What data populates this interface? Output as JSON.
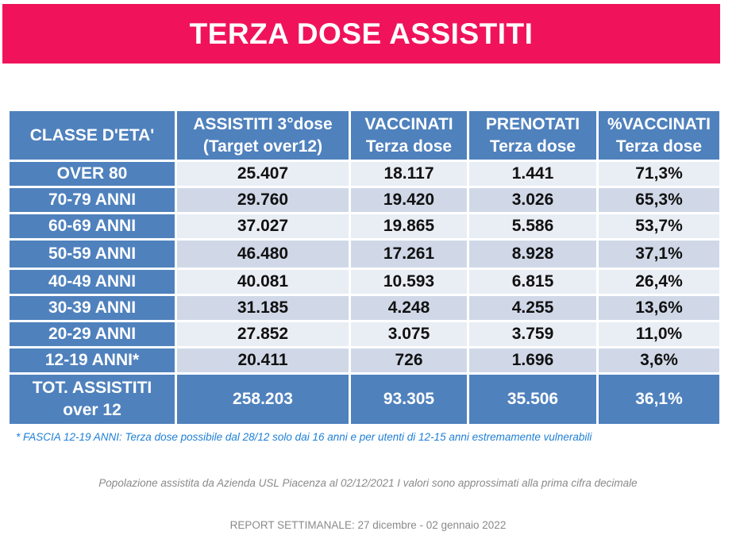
{
  "title": "TERZA DOSE ASSISTITI",
  "table": {
    "headers": [
      [
        "CLASSE D'ETA'"
      ],
      [
        "ASSISTITI 3°dose",
        "(Target over12)"
      ],
      [
        "VACCINATI",
        "Terza dose"
      ],
      [
        "PRENOTATI",
        "Terza dose"
      ],
      [
        "%VACCINATI",
        "Terza dose"
      ]
    ],
    "rows": [
      {
        "age": "OVER 80",
        "assistiti": "25.407",
        "vaccinati": "18.117",
        "prenotati": "1.441",
        "perc": "71,3%"
      },
      {
        "age": "70-79 ANNI",
        "assistiti": "29.760",
        "vaccinati": "19.420",
        "prenotati": "3.026",
        "perc": "65,3%"
      },
      {
        "age": "60-69 ANNI",
        "assistiti": "37.027",
        "vaccinati": "19.865",
        "prenotati": "5.586",
        "perc": "53,7%"
      },
      {
        "age": "50-59 ANNI",
        "assistiti": "46.480",
        "vaccinati": "17.261",
        "prenotati": "8.928",
        "perc": "37,1%"
      },
      {
        "age": "40-49 ANNI",
        "assistiti": "40.081",
        "vaccinati": "10.593",
        "prenotati": "6.815",
        "perc": "26,4%"
      },
      {
        "age": "30-39 ANNI",
        "assistiti": "31.185",
        "vaccinati": "4.248",
        "prenotati": "4.255",
        "perc": "13,6%"
      },
      {
        "age": "20-29 ANNI",
        "assistiti": "27.852",
        "vaccinati": "3.075",
        "prenotati": "3.759",
        "perc": "11,0%"
      },
      {
        "age": "12-19 ANNI*",
        "assistiti": "20.411",
        "vaccinati": "726",
        "prenotati": "1.696",
        "perc": "3,6%"
      }
    ],
    "total": {
      "label_line1": "TOT. ASSISTITI",
      "label_line2": "over 12",
      "assistiti": "258.203",
      "vaccinati": "93.305",
      "prenotati": "35.506",
      "perc": "36,1%"
    }
  },
  "footnote": "* FASCIA 12-19 ANNI: Terza dose possibile dal 28/12 solo dai 16 anni e per utenti di 12-15  anni estremamente vulnerabili",
  "source": "Popolazione assistita da Azienda USL Piacenza al 02/12/2021 I valori sono approssimati alla prima cifra decimale",
  "report": "REPORT SETTIMANALE: 27 dicembre - 02 gennaio 2022",
  "colors": {
    "banner": "#f0135c",
    "header_blue": "#4f81bd",
    "row_light": "#e9edf4",
    "row_dark": "#d0d8e8",
    "footnote": "#1f7fd6"
  }
}
